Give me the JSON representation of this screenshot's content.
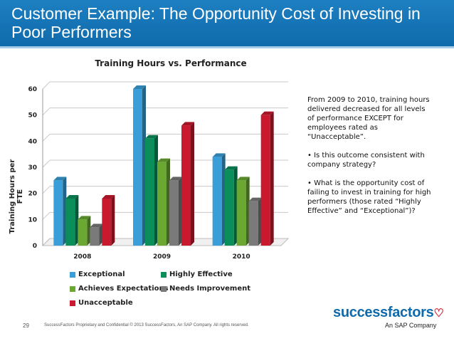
{
  "slide": {
    "title": "Customer Example: The Opportunity Cost of Investing in Poor Performers",
    "page_number": "29",
    "footer": "SuccessFactors Proprietary and Confidential   © 2013 SuccessFactors, An SAP Company.  All rights reserved.",
    "logo_text": "successfactors",
    "logo_heart": "♡",
    "logo_subtitle": "An SAP Company"
  },
  "notes": {
    "p1": "From 2009 to 2010, training hours delivered decreased for all levels of performance EXCEPT for employees rated as “Unacceptable”.",
    "p2": "•  Is this outcome consistent with company strategy?",
    "p3": "•  What is the opportunity cost of failing to invest in training for high performers (those rated “Highly Effective” and “Exceptional”)?"
  },
  "chart_data": {
    "type": "bar",
    "title": "Training Hours vs. Performance",
    "xlabel": "",
    "ylabel": "Training Hours per FTE",
    "categories": [
      "2008",
      "2009",
      "2010"
    ],
    "ylim": [
      0,
      60
    ],
    "yticks": [
      "0",
      "10",
      "20",
      "30",
      "40",
      "50",
      "60"
    ],
    "grid": true,
    "legend_position": "bottom",
    "series": [
      {
        "name": "Exceptional",
        "color": "#3a9fd8",
        "values": [
          25,
          60,
          34
        ]
      },
      {
        "name": "Highly Effective",
        "color": "#0a8f5a",
        "values": [
          18,
          41,
          29
        ]
      },
      {
        "name": "Achieves Expectations",
        "color": "#6aa832",
        "values": [
          10,
          32,
          25
        ]
      },
      {
        "name": "Needs Improvement",
        "color": "#7a7a7a",
        "values": [
          7,
          25,
          17
        ]
      },
      {
        "name": "Unacceptable",
        "color": "#c8192e",
        "values": [
          18,
          46,
          50
        ]
      }
    ]
  }
}
